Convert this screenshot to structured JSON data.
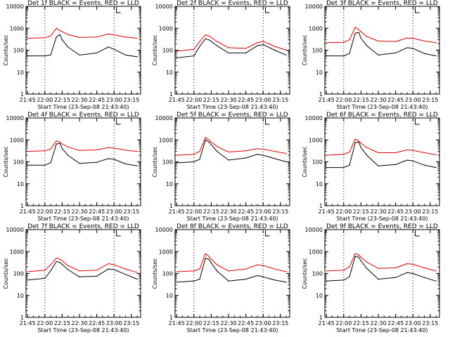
{
  "figure": {
    "x_ticks": [
      "21:45",
      "22:00",
      "22:15",
      "22:30",
      "22:45",
      "23:00",
      "23:15"
    ],
    "y_ticks": [
      "1",
      "10",
      "100",
      "1000",
      "10000"
    ],
    "ylabel": "Counts/sec",
    "xlabel": "Start Time (23-Sep-08 21:43:40)",
    "colors": {
      "events": "#000000",
      "lld": "#dd0000",
      "axes": "#000000",
      "background": "#ffffff"
    }
  },
  "chart_data": [
    {
      "type": "line",
      "title": "Det 1f BLACK = Events, RED = LLD",
      "xlabel": "Start Time (23-Sep-08 21:43:40)",
      "ylabel": "Counts/sec",
      "y_scale": "log",
      "ylim": [
        1,
        10000
      ],
      "xlim": [
        "21:43:40",
        "23:23:00"
      ],
      "dashed_vlines": [
        "22:00",
        "23:00"
      ],
      "grid": false,
      "x": [
        "21:45",
        "22:00",
        "22:05",
        "22:10",
        "22:13",
        "22:15",
        "22:20",
        "22:30",
        "22:45",
        "22:55",
        "23:00",
        "23:10",
        "23:20"
      ],
      "series": [
        {
          "name": "LLD",
          "color": "#dd0000",
          "values": [
            350,
            370,
            450,
            1000,
            800,
            700,
            520,
            380,
            400,
            550,
            500,
            400,
            350
          ]
        },
        {
          "name": "Events",
          "color": "#000000",
          "values": [
            55,
            55,
            60,
            400,
            520,
            300,
            140,
            60,
            75,
            140,
            110,
            60,
            50
          ]
        }
      ]
    },
    {
      "type": "line",
      "title": "Det 2f BLACK = Events, RED = LLD",
      "xlabel": "Start Time (23-Sep-08 21:43:40)",
      "ylabel": "Counts/sec",
      "y_scale": "log",
      "ylim": [
        1,
        10000
      ],
      "xlim": [
        "21:43:40",
        "23:23:00"
      ],
      "dashed_vlines": [
        "22:00",
        "23:00"
      ],
      "grid": false,
      "x": [
        "21:45",
        "22:00",
        "22:05",
        "22:10",
        "22:13",
        "22:15",
        "22:20",
        "22:30",
        "22:45",
        "22:55",
        "23:00",
        "23:10",
        "23:20"
      ],
      "series": [
        {
          "name": "LLD",
          "color": "#dd0000",
          "values": [
            90,
            110,
            250,
            500,
            450,
            380,
            250,
            130,
            120,
            220,
            250,
            150,
            100
          ]
        },
        {
          "name": "Events",
          "color": "#000000",
          "values": [
            45,
            55,
            150,
            330,
            300,
            250,
            160,
            75,
            75,
            160,
            180,
            100,
            60
          ]
        }
      ]
    },
    {
      "type": "line",
      "title": "Det 3f BLACK = Events, RED = LLD",
      "xlabel": "Start Time (23-Sep-08 21:43:40)",
      "ylabel": "Counts/sec",
      "y_scale": "log",
      "ylim": [
        1,
        10000
      ],
      "xlim": [
        "21:43:40",
        "23:23:00"
      ],
      "dashed_vlines": [
        "22:00",
        "23:00"
      ],
      "grid": false,
      "x": [
        "21:45",
        "22:00",
        "22:05",
        "22:10",
        "22:13",
        "22:15",
        "22:20",
        "22:30",
        "22:45",
        "22:55",
        "23:00",
        "23:10",
        "23:20"
      ],
      "series": [
        {
          "name": "LLD",
          "color": "#dd0000",
          "values": [
            220,
            230,
            300,
            1100,
            900,
            700,
            420,
            260,
            250,
            360,
            350,
            260,
            220
          ]
        },
        {
          "name": "Events",
          "color": "#000000",
          "values": [
            55,
            55,
            70,
            600,
            650,
            350,
            160,
            60,
            75,
            130,
            120,
            70,
            55
          ]
        }
      ]
    },
    {
      "type": "line",
      "title": "Det 4f BLACK = Events, RED = LLD",
      "xlabel": "Start Time (23-Sep-08 21:43:40)",
      "ylabel": "Counts/sec",
      "y_scale": "log",
      "ylim": [
        1,
        10000
      ],
      "xlim": [
        "21:43:40",
        "23:23:00"
      ],
      "dashed_vlines": [
        "22:00",
        "23:00"
      ],
      "grid": false,
      "x": [
        "21:45",
        "22:00",
        "22:05",
        "22:10",
        "22:13",
        "22:15",
        "22:20",
        "22:30",
        "22:45",
        "22:55",
        "23:00",
        "23:10",
        "23:20"
      ],
      "series": [
        {
          "name": "LLD",
          "color": "#dd0000",
          "values": [
            300,
            320,
            380,
            900,
            800,
            650,
            480,
            330,
            350,
            450,
            420,
            340,
            300
          ]
        },
        {
          "name": "Events",
          "color": "#000000",
          "values": [
            70,
            70,
            90,
            650,
            700,
            400,
            200,
            85,
            95,
            140,
            130,
            80,
            65
          ]
        }
      ]
    },
    {
      "type": "line",
      "title": "Det 5f BLACK = Events, RED = LLD",
      "xlabel": "Start Time (23-Sep-08 21:43:40)",
      "ylabel": "Counts/sec",
      "y_scale": "log",
      "ylim": [
        1,
        10000
      ],
      "xlim": [
        "21:43:40",
        "23:23:00"
      ],
      "dashed_vlines": [
        "22:00",
        "23:00"
      ],
      "grid": false,
      "x": [
        "21:45",
        "22:00",
        "22:05",
        "22:10",
        "22:13",
        "22:15",
        "22:20",
        "22:30",
        "22:45",
        "22:55",
        "23:00",
        "23:10",
        "23:20"
      ],
      "series": [
        {
          "name": "LLD",
          "color": "#dd0000",
          "values": [
            200,
            220,
            300,
            1300,
            1000,
            800,
            500,
            280,
            320,
            400,
            380,
            300,
            240
          ]
        },
        {
          "name": "Events",
          "color": "#000000",
          "values": [
            90,
            100,
            130,
            1000,
            800,
            600,
            300,
            120,
            150,
            220,
            200,
            140,
            100
          ]
        }
      ]
    },
    {
      "type": "line",
      "title": "Det 6f BLACK = Events, RED = LLD",
      "xlabel": "Start Time (23-Sep-08 21:43:40)",
      "ylabel": "Counts/sec",
      "y_scale": "log",
      "ylim": [
        1,
        10000
      ],
      "xlim": [
        "21:43:40",
        "23:23:00"
      ],
      "dashed_vlines": [
        "22:00",
        "23:00"
      ],
      "grid": false,
      "x": [
        "21:45",
        "22:00",
        "22:05",
        "22:10",
        "22:13",
        "22:15",
        "22:20",
        "22:30",
        "22:45",
        "22:55",
        "23:00",
        "23:10",
        "23:20"
      ],
      "series": [
        {
          "name": "LLD",
          "color": "#dd0000",
          "values": [
            200,
            220,
            280,
            1100,
            900,
            700,
            450,
            260,
            260,
            350,
            330,
            260,
            210
          ]
        },
        {
          "name": "Events",
          "color": "#000000",
          "values": [
            55,
            55,
            70,
            750,
            800,
            450,
            200,
            65,
            75,
            120,
            110,
            70,
            55
          ]
        }
      ]
    },
    {
      "type": "line",
      "title": "Det 7f BLACK = Events, RED = LLD",
      "xlabel": "Start Time (23-Sep-08 21:43:40)",
      "ylabel": "Counts/sec",
      "y_scale": "log",
      "ylim": [
        1,
        10000
      ],
      "xlim": [
        "21:43:40",
        "23:23:00"
      ],
      "dashed_vlines": [
        "22:00",
        "23:00"
      ],
      "grid": false,
      "x": [
        "21:45",
        "22:00",
        "22:05",
        "22:10",
        "22:13",
        "22:15",
        "22:20",
        "22:30",
        "22:45",
        "22:55",
        "23:00",
        "23:10",
        "23:20"
      ],
      "series": [
        {
          "name": "LLD",
          "color": "#dd0000",
          "values": [
            120,
            140,
            250,
            500,
            450,
            380,
            230,
            130,
            140,
            280,
            250,
            160,
            110
          ]
        },
        {
          "name": "Events",
          "color": "#000000",
          "values": [
            50,
            60,
            130,
            350,
            320,
            260,
            150,
            70,
            75,
            160,
            150,
            90,
            55
          ]
        }
      ]
    },
    {
      "type": "line",
      "title": "Det 8f BLACK = Events, RED = LLD",
      "xlabel": "Start Time (23-Sep-08 21:43:40)",
      "ylabel": "Counts/sec",
      "y_scale": "log",
      "ylim": [
        1,
        10000
      ],
      "xlim": [
        "21:43:40",
        "23:23:00"
      ],
      "dashed_vlines": [
        "22:00",
        "23:00"
      ],
      "grid": false,
      "x": [
        "21:45",
        "22:00",
        "22:05",
        "22:10",
        "22:13",
        "22:15",
        "22:20",
        "22:30",
        "22:45",
        "22:55",
        "23:00",
        "23:10",
        "23:20"
      ],
      "series": [
        {
          "name": "LLD",
          "color": "#dd0000",
          "values": [
            120,
            130,
            160,
            800,
            600,
            450,
            250,
            130,
            160,
            250,
            230,
            160,
            120
          ]
        },
        {
          "name": "Events",
          "color": "#000000",
          "values": [
            40,
            45,
            55,
            500,
            450,
            300,
            130,
            45,
            55,
            80,
            70,
            50,
            40
          ]
        }
      ]
    },
    {
      "type": "line",
      "title": "Det 9f BLACK = Events, RED = LLD",
      "xlabel": "Start Time (23-Sep-08 21:43:40)",
      "ylabel": "Counts/sec",
      "y_scale": "log",
      "ylim": [
        1,
        10000
      ],
      "xlim": [
        "21:43:40",
        "23:23:00"
      ],
      "dashed_vlines": [
        "22:00",
        "23:00"
      ],
      "grid": false,
      "x": [
        "21:45",
        "22:00",
        "22:05",
        "22:10",
        "22:13",
        "22:15",
        "22:20",
        "22:30",
        "22:45",
        "22:55",
        "23:00",
        "23:10",
        "23:20"
      ],
      "series": [
        {
          "name": "LLD",
          "color": "#dd0000",
          "values": [
            130,
            140,
            200,
            800,
            700,
            550,
            330,
            170,
            180,
            280,
            260,
            180,
            130
          ]
        },
        {
          "name": "Events",
          "color": "#000000",
          "values": [
            45,
            50,
            70,
            600,
            550,
            380,
            170,
            55,
            65,
            110,
            100,
            65,
            45
          ]
        }
      ]
    }
  ]
}
